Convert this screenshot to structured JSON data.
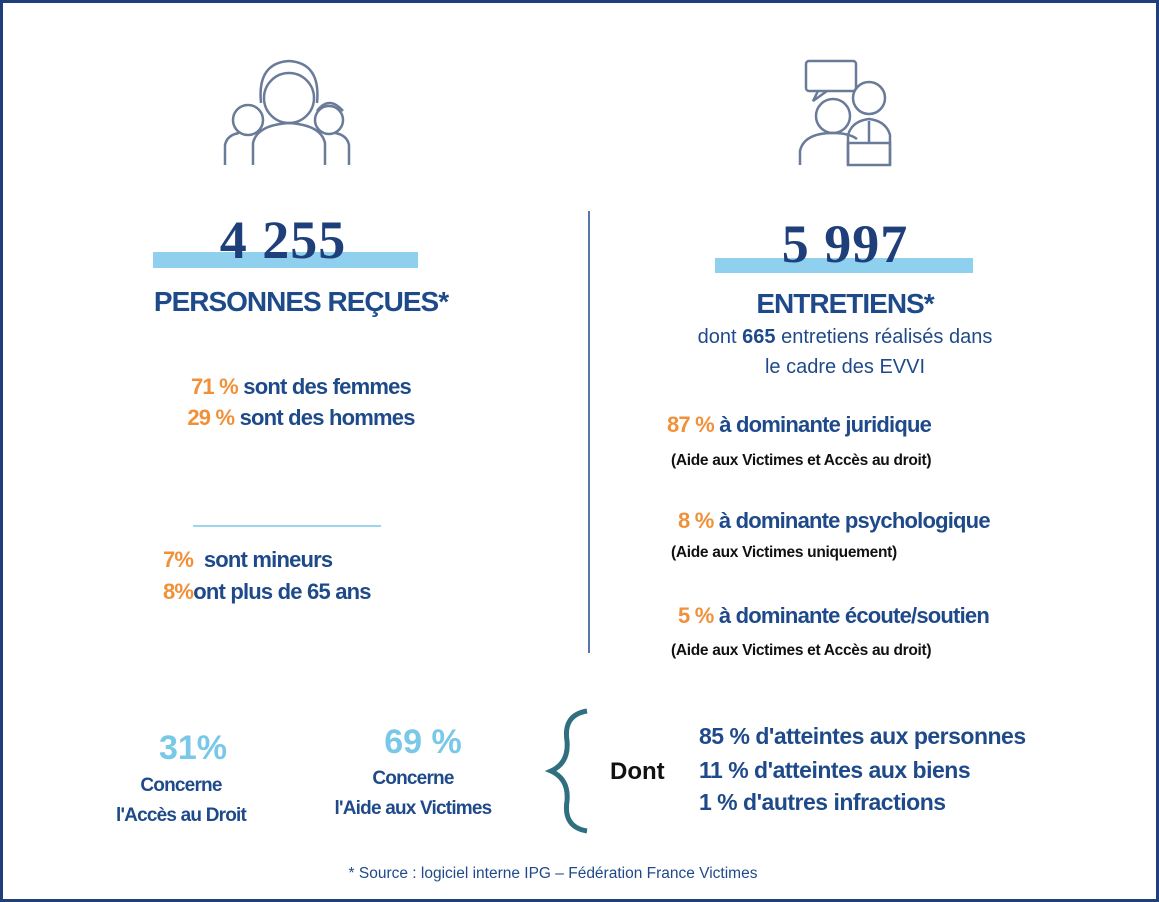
{
  "left": {
    "number": "4 255",
    "label": "PERSONNES REÇUES*",
    "stats": [
      {
        "pct": "71 %",
        "text": "sont des femmes"
      },
      {
        "pct": "29 %",
        "text": "sont des hommes"
      },
      {
        "pct": "7%",
        "text": "sont mineurs"
      },
      {
        "pct": "8%",
        "text": "ont plus de 65 ans"
      }
    ]
  },
  "right": {
    "number": "5 997",
    "label": "ENTRETIENS*",
    "detail": {
      "before": "dont",
      "count": "665",
      "after": "entretiens réalisés dans",
      "line2": "le cadre des EVVI"
    },
    "items": [
      {
        "pct": "87 %",
        "text": "à dominante juridique",
        "note": "(Aide aux Victimes et Accès au droit)"
      },
      {
        "pct": "8 %",
        "text": "à dominante psychologique",
        "note": "(Aide aux Victimes uniquement)"
      },
      {
        "pct": "5 %",
        "text": "à dominante écoute/soutien",
        "note": "(Aide aux Victimes et Accès au droit)"
      }
    ]
  },
  "bottom": {
    "groups": [
      {
        "pct": "31%",
        "line1": "Concerne",
        "line2": "l'Accès au Droit"
      },
      {
        "pct": "69 %",
        "line1": "Concerne",
        "line2": "l'Aide aux Victimes"
      }
    ],
    "dont": "Dont",
    "list": [
      "85 % d'atteintes aux personnes",
      "11 % d'atteintes aux biens",
      "1 % d'autres infractions"
    ]
  },
  "footer": "* Source : logiciel interne IPG – Fédération France Victimes"
}
